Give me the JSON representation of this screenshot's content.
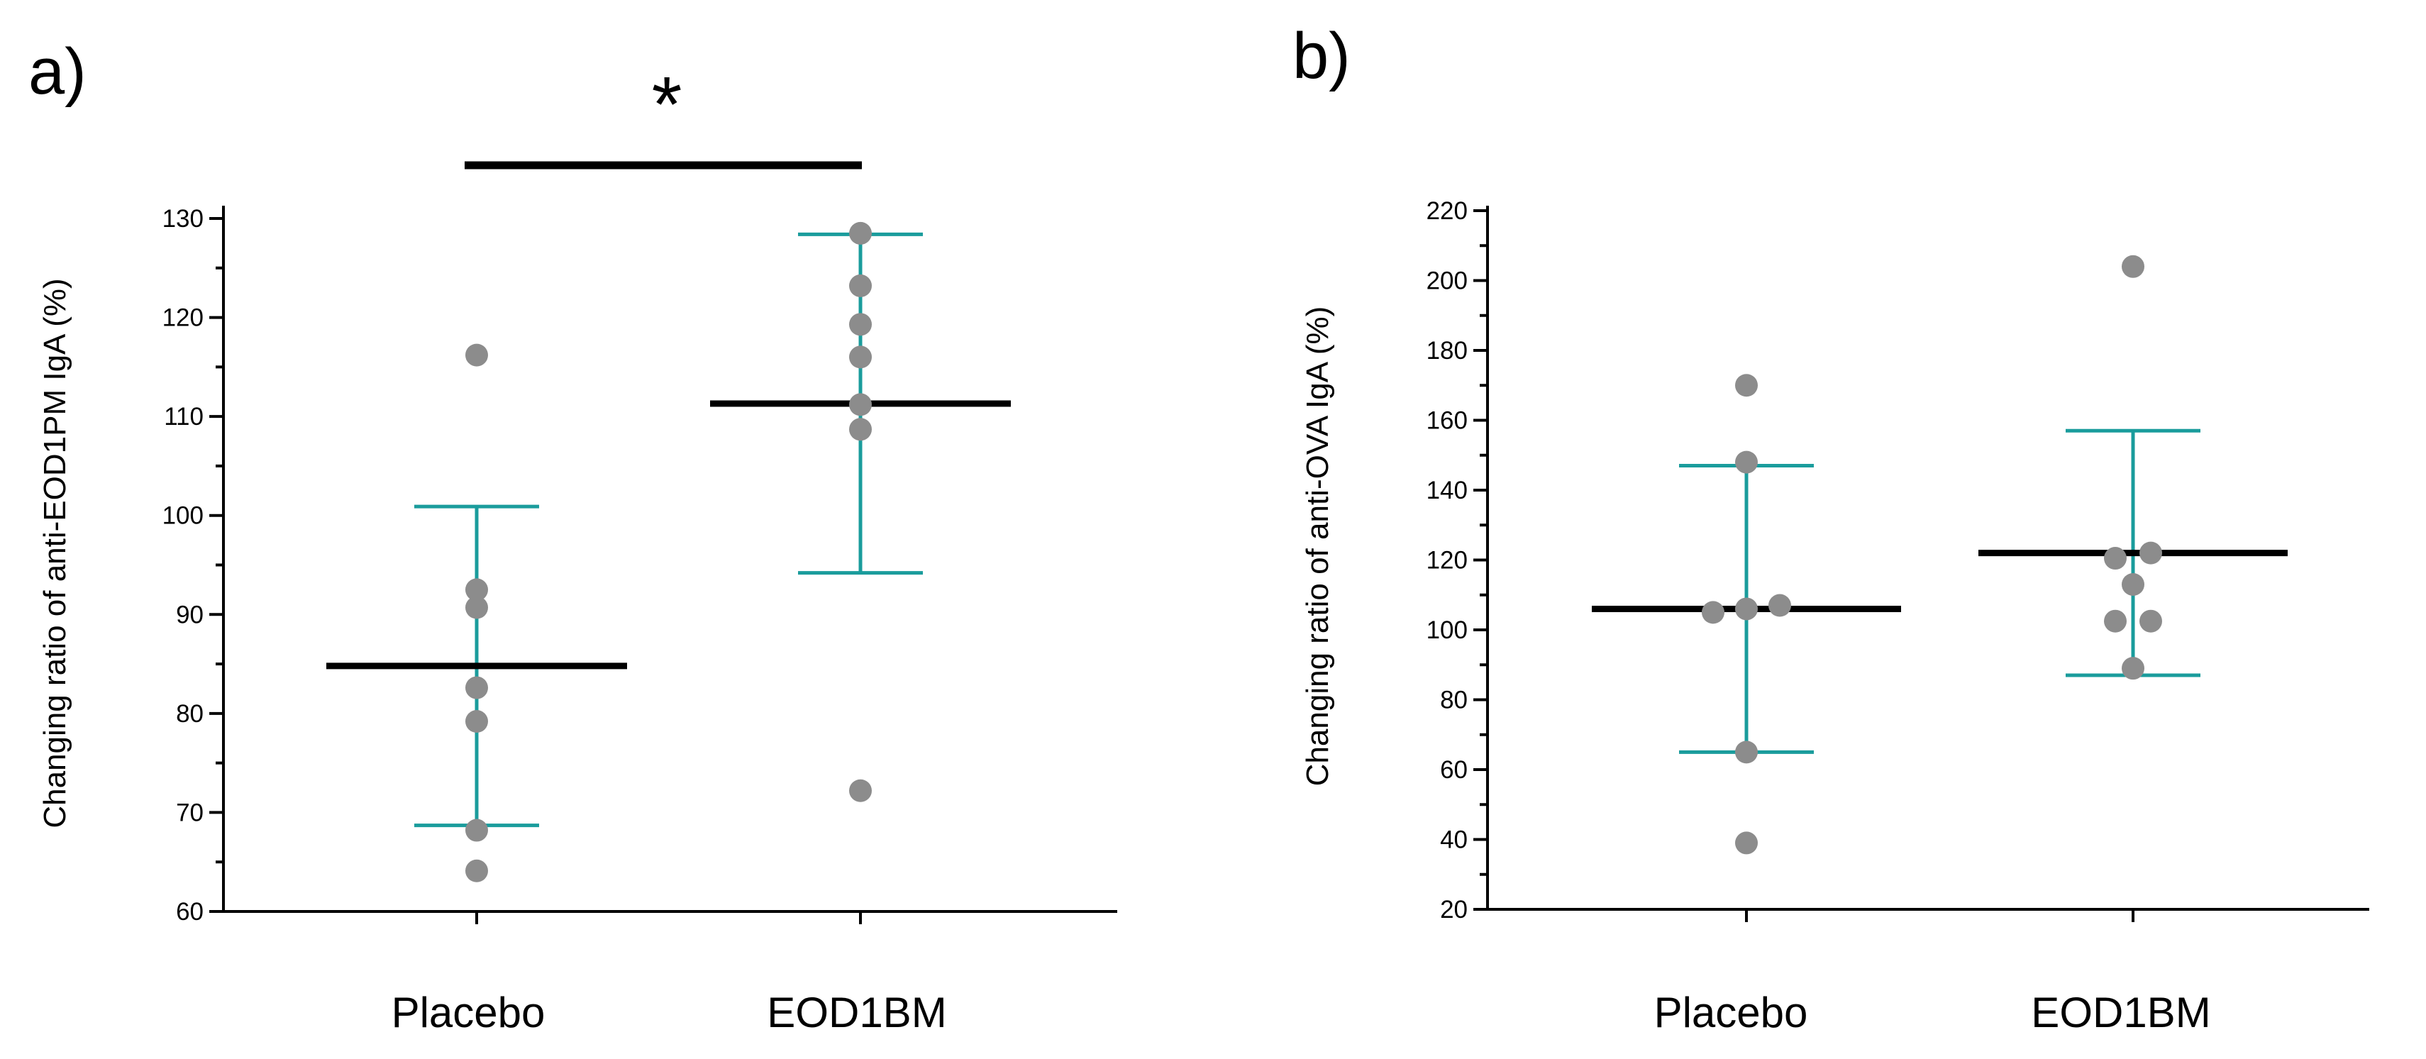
{
  "colors": {
    "point": "#8c8c8c",
    "error_bar": "#1a9c9c",
    "mean_line": "#000000"
  },
  "chart_data": [
    {
      "type": "scatter",
      "panel_label": "a)",
      "ylabel": "Changing ratio of anti-EOD1PM IgA (%)",
      "ylim": [
        60,
        130
      ],
      "yticks": [
        60,
        70,
        80,
        90,
        100,
        110,
        120,
        130
      ],
      "categories": [
        "Placebo",
        "EOD1BM"
      ],
      "groups": [
        {
          "name": "Placebo",
          "points": [
            116.2,
            92.5,
            90.7,
            82.6,
            79.2,
            68.2,
            64.1
          ],
          "mean": 84.8,
          "err_low": 68.7,
          "err_high": 100.9
        },
        {
          "name": "EOD1BM",
          "points": [
            128.5,
            123.2,
            119.3,
            116.0,
            111.2,
            108.7,
            72.2
          ],
          "mean": 111.3,
          "err_low": 94.2,
          "err_high": 128.4
        }
      ],
      "significance": {
        "label": "*",
        "between": [
          "Placebo",
          "EOD1BM"
        ]
      }
    },
    {
      "type": "scatter",
      "panel_label": "b)",
      "ylabel": "Changing ratio of anti-OVA IgA (%)",
      "ylim": [
        20,
        220
      ],
      "yticks": [
        20,
        40,
        60,
        80,
        100,
        120,
        140,
        160,
        180,
        200,
        220
      ],
      "categories": [
        "Placebo",
        "EOD1BM"
      ],
      "groups": [
        {
          "name": "Placebo",
          "points": [
            170.0,
            148.0,
            105.0,
            106.0,
            107.0,
            65.0,
            39.0
          ],
          "mean": 106.0,
          "err_low": 65.0,
          "err_high": 147.0
        },
        {
          "name": "EOD1BM",
          "points": [
            204.0,
            120.5,
            122.0,
            113.0,
            102.5,
            102.5,
            89.0
          ],
          "mean": 122.0,
          "err_low": 87.0,
          "err_high": 157.0
        }
      ]
    }
  ]
}
